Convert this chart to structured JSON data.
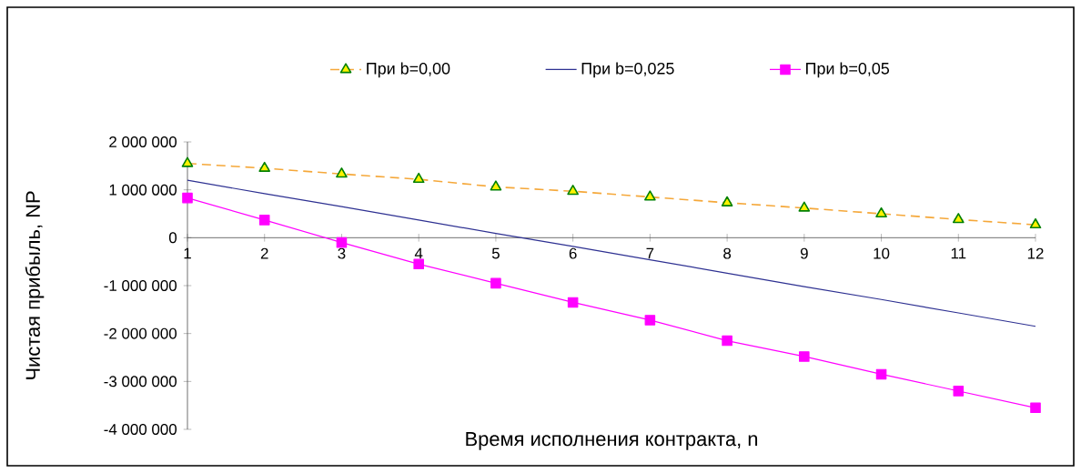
{
  "chart_data": {
    "type": "line",
    "xlabel": "Время исполнения контракта, n",
    "ylabel": "Чистая прибыль, NP",
    "categories": [
      "1",
      "2",
      "3",
      "4",
      "5",
      "6",
      "7",
      "8",
      "9",
      "10",
      "11",
      "12"
    ],
    "series": [
      {
        "name": "При b=0,00",
        "color": "#f5a83a",
        "line_style": "dashed",
        "marker": "triangle",
        "values": [
          1550000,
          1450000,
          1330000,
          1220000,
          1060000,
          970000,
          850000,
          730000,
          620000,
          500000,
          380000,
          270000
        ]
      },
      {
        "name": "При b=0,025",
        "color": "#2e3192",
        "line_style": "solid",
        "marker": "none",
        "values": [
          1200000,
          920000,
          650000,
          370000,
          90000,
          -180000,
          -460000,
          -740000,
          -1020000,
          -1290000,
          -1570000,
          -1850000
        ]
      },
      {
        "name": "При b=0,05",
        "color": "#ff00ff",
        "line_style": "solid",
        "marker": "square",
        "values": [
          830000,
          370000,
          -100000,
          -550000,
          -950000,
          -1350000,
          -1720000,
          -2150000,
          -2480000,
          -2850000,
          -3200000,
          -3550000
        ]
      }
    ],
    "ylim": [
      -4000000,
      2000000
    ],
    "yticks": [
      {
        "value": -4000000,
        "label": "-4 000 000"
      },
      {
        "value": -3000000,
        "label": "-3 000 000"
      },
      {
        "value": -2000000,
        "label": "-2 000 000"
      },
      {
        "value": -1000000,
        "label": "-1 000 000"
      },
      {
        "value": 0,
        "label": "0"
      },
      {
        "value": 1000000,
        "label": "1 000 000"
      },
      {
        "value": 2000000,
        "label": "2 000 000"
      }
    ],
    "grid": false,
    "legend": "top"
  }
}
